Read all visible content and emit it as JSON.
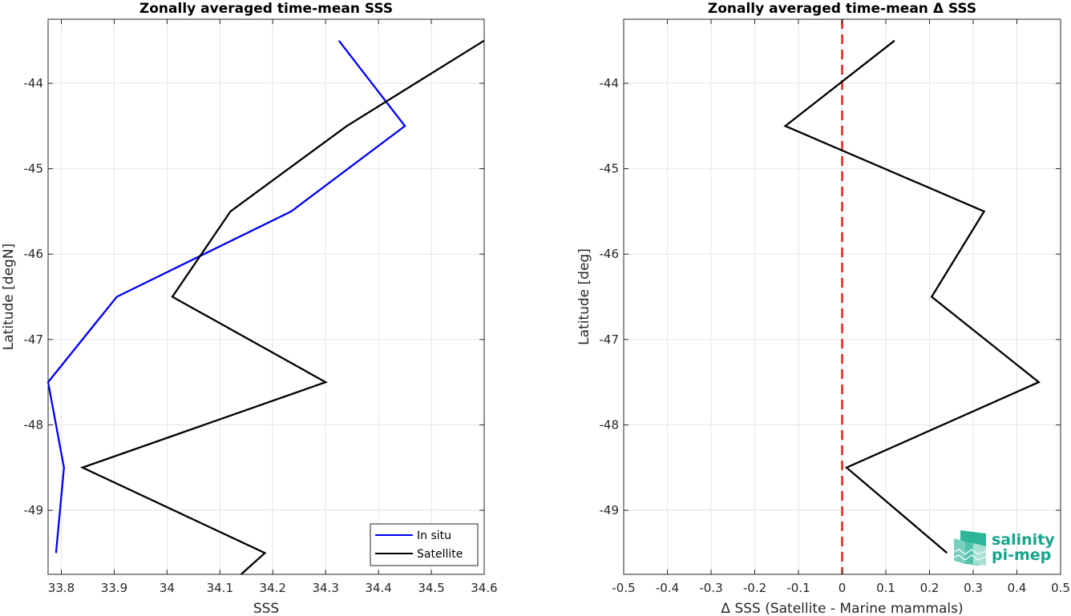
{
  "chart_data": [
    {
      "type": "line",
      "title": "Zonally averaged time-mean SSS",
      "xlabel": "SSS",
      "ylabel": "Latitude [degN]",
      "xlim": [
        33.775,
        34.6
      ],
      "ylim": [
        -49.75,
        -43.25
      ],
      "xticks": [
        "33.8",
        "33.9",
        "34",
        "34.1",
        "34.2",
        "34.3",
        "34.4",
        "34.5",
        "34.6"
      ],
      "yticks": [
        "-44",
        "-45",
        "-46",
        "-47",
        "-48",
        "-49"
      ],
      "grid": true,
      "legend": "bottom-right",
      "series": [
        {
          "name": "In situ",
          "color": "#0000ff",
          "points": [
            [
              34.325,
              -43.5
            ],
            [
              34.45,
              -44.5
            ],
            [
              34.235,
              -45.5
            ],
            [
              33.905,
              -46.5
            ],
            [
              33.775,
              -47.5
            ],
            [
              33.805,
              -48.5
            ],
            [
              33.79,
              -49.5
            ]
          ]
        },
        {
          "name": "Satellite",
          "color": "#000000",
          "points": [
            [
              34.6,
              -43.5
            ],
            [
              34.34,
              -44.5
            ],
            [
              34.12,
              -45.5
            ],
            [
              34.01,
              -46.5
            ],
            [
              34.3,
              -47.5
            ],
            [
              33.84,
              -48.5
            ],
            [
              34.185,
              -49.5
            ],
            [
              34.14,
              -49.75
            ]
          ]
        }
      ]
    },
    {
      "type": "line",
      "title": "Zonally averaged time-mean Δ SSS",
      "xlabel": "Δ SSS (Satellite - Marine mammals)",
      "ylabel": "Latitude [deg]",
      "xlim": [
        -0.5,
        0.5
      ],
      "ylim": [
        -49.75,
        -43.25
      ],
      "xticks": [
        "-0.5",
        "-0.4",
        "-0.3",
        "-0.2",
        "-0.1",
        "0",
        "0.1",
        "0.2",
        "0.3",
        "0.4",
        "0.5"
      ],
      "yticks": [
        "-44",
        "-45",
        "-46",
        "-47",
        "-48",
        "-49"
      ],
      "grid": true,
      "zero_line": {
        "x": 0,
        "color": "#e32219",
        "style": "dashed"
      },
      "series": [
        {
          "color": "#000000",
          "points": [
            [
              0.12,
              -43.5
            ],
            [
              -0.13,
              -44.5
            ],
            [
              0.325,
              -45.5
            ],
            [
              0.205,
              -46.5
            ],
            [
              0.45,
              -47.5
            ],
            [
              0.01,
              -48.5
            ],
            [
              0.24,
              -49.5
            ]
          ]
        }
      ]
    }
  ],
  "logo": {
    "line1": "salinity",
    "line2": "pi-mep",
    "color": "#17a58c"
  }
}
